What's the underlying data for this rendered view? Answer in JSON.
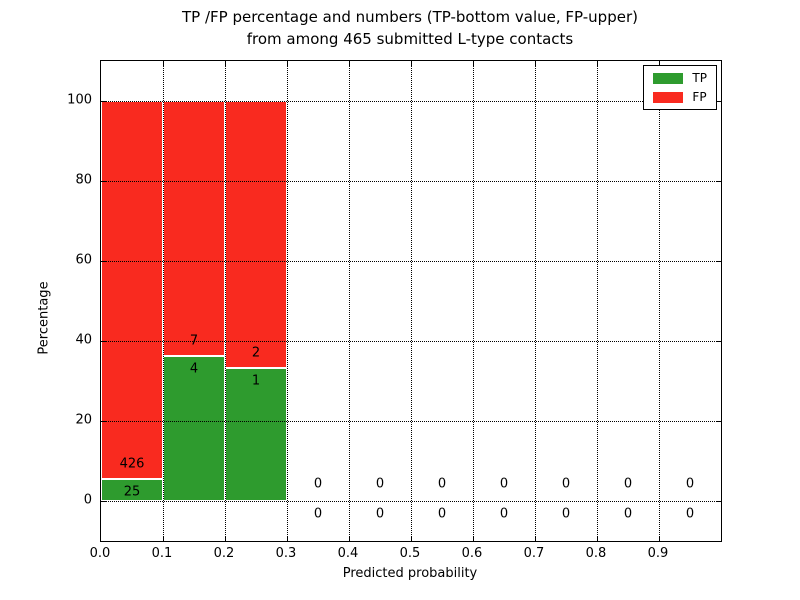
{
  "chart_data": {
    "type": "bar",
    "subtype": "stacked-percentage-histogram",
    "title_line1": "TP /FP percentage and numbers (TP-bottom value, FP-upper)",
    "title_line2": "from among 465 submitted L-type contacts",
    "xlabel": "Predicted probability",
    "ylabel": "Percentage",
    "xlim": [
      0.0,
      1.0
    ],
    "ylim": [
      -10,
      110
    ],
    "x_tick_values": [
      0.0,
      0.1,
      0.2,
      0.3,
      0.4,
      0.5,
      0.6,
      0.7,
      0.8,
      0.9
    ],
    "x_tick_labels": [
      "0.0",
      "0.1",
      "0.2",
      "0.3",
      "0.4",
      "0.5",
      "0.6",
      "0.7",
      "0.8",
      "0.9"
    ],
    "y_tick_values": [
      0,
      20,
      40,
      60,
      80,
      100
    ],
    "y_tick_labels": [
      "0",
      "20",
      "40",
      "60",
      "80",
      "100"
    ],
    "grid": "dotted black, horizontal and vertical, drawn over bars",
    "total_contacts": 465,
    "colors": {
      "tp": "#2e9b2e",
      "fp": "#f92a1f",
      "bar_edge": "#ffffff",
      "text": "#000000",
      "background": "#ffffff"
    },
    "legend": {
      "position": "upper-right",
      "entries": [
        {
          "label": "TP",
          "color": "#2e9b2e"
        },
        {
          "label": "FP",
          "color": "#f92a1f"
        }
      ]
    },
    "bins": [
      {
        "x_start": 0.0,
        "x_end": 0.1,
        "tp_count": 25,
        "fp_count": 426,
        "tp_pct": 5.54,
        "fp_pct": 94.46
      },
      {
        "x_start": 0.1,
        "x_end": 0.2,
        "tp_count": 4,
        "fp_count": 7,
        "tp_pct": 36.36,
        "fp_pct": 63.64
      },
      {
        "x_start": 0.2,
        "x_end": 0.3,
        "tp_count": 1,
        "fp_count": 2,
        "tp_pct": 33.33,
        "fp_pct": 66.67
      },
      {
        "x_start": 0.3,
        "x_end": 0.4,
        "tp_count": 0,
        "fp_count": 0
      },
      {
        "x_start": 0.4,
        "x_end": 0.5,
        "tp_count": 0,
        "fp_count": 0
      },
      {
        "x_start": 0.5,
        "x_end": 0.6,
        "tp_count": 0,
        "fp_count": 0
      },
      {
        "x_start": 0.6,
        "x_end": 0.7,
        "tp_count": 0,
        "fp_count": 0
      },
      {
        "x_start": 0.7,
        "x_end": 0.8,
        "tp_count": 0,
        "fp_count": 0
      },
      {
        "x_start": 0.8,
        "x_end": 0.9,
        "tp_count": 0,
        "fp_count": 0
      },
      {
        "x_start": 0.9,
        "x_end": 1.0,
        "tp_count": 0,
        "fp_count": 0
      }
    ]
  }
}
